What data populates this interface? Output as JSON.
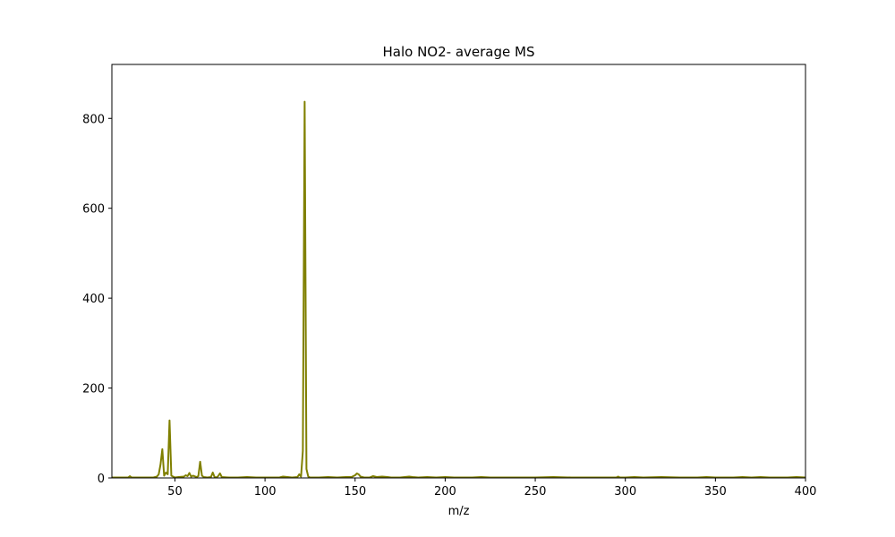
{
  "chart_data": {
    "type": "line",
    "title": "Halo NO2- average MS",
    "xlabel": "m/z",
    "ylabel": "",
    "xlim": [
      15,
      400
    ],
    "ylim": [
      0,
      920
    ],
    "xticks": [
      50,
      100,
      150,
      200,
      250,
      300,
      350,
      400
    ],
    "yticks": [
      0,
      200,
      400,
      600,
      800
    ],
    "grid": false,
    "series": [
      {
        "color": "#808000",
        "x": [
          15,
          20,
          24,
          25,
          26,
          30,
          35,
          38,
          40,
          41,
          42,
          43,
          44,
          45,
          46,
          47,
          48,
          50,
          52,
          55,
          56,
          57,
          58,
          59,
          60,
          62,
          63,
          64,
          65,
          66,
          68,
          70,
          71,
          72,
          73,
          74,
          75,
          76,
          80,
          85,
          90,
          95,
          100,
          105,
          108,
          110,
          115,
          118,
          119,
          120,
          121,
          122,
          123,
          124,
          125,
          130,
          135,
          140,
          145,
          148,
          150,
          151,
          152,
          153,
          155,
          158,
          160,
          162,
          165,
          168,
          170,
          175,
          180,
          182,
          185,
          190,
          195,
          200,
          205,
          210,
          215,
          220,
          225,
          230,
          240,
          250,
          260,
          270,
          280,
          290,
          295,
          296,
          297,
          300,
          305,
          310,
          320,
          330,
          340,
          345,
          350,
          360,
          365,
          370,
          375,
          380,
          390,
          395,
          400
        ],
        "y": [
          1,
          1,
          1,
          4,
          1,
          1,
          1,
          1,
          3,
          8,
          30,
          64,
          5,
          12,
          8,
          128,
          5,
          1,
          2,
          3,
          6,
          4,
          11,
          3,
          5,
          2,
          4,
          36,
          5,
          2,
          1,
          2,
          12,
          2,
          1,
          4,
          10,
          2,
          1,
          1,
          2,
          1,
          1,
          1,
          1,
          3,
          1,
          2,
          8,
          3,
          60,
          837,
          20,
          3,
          1,
          1,
          2,
          1,
          2,
          2,
          6,
          10,
          8,
          3,
          1,
          1,
          4,
          2,
          3,
          2,
          1,
          1,
          3,
          2,
          1,
          2,
          1,
          2,
          1,
          1,
          1,
          2,
          1,
          1,
          1,
          1,
          2,
          1,
          1,
          1,
          1,
          3,
          1,
          1,
          2,
          1,
          2,
          1,
          1,
          2,
          1,
          1,
          2,
          1,
          2,
          1,
          1,
          2,
          1
        ]
      }
    ]
  }
}
